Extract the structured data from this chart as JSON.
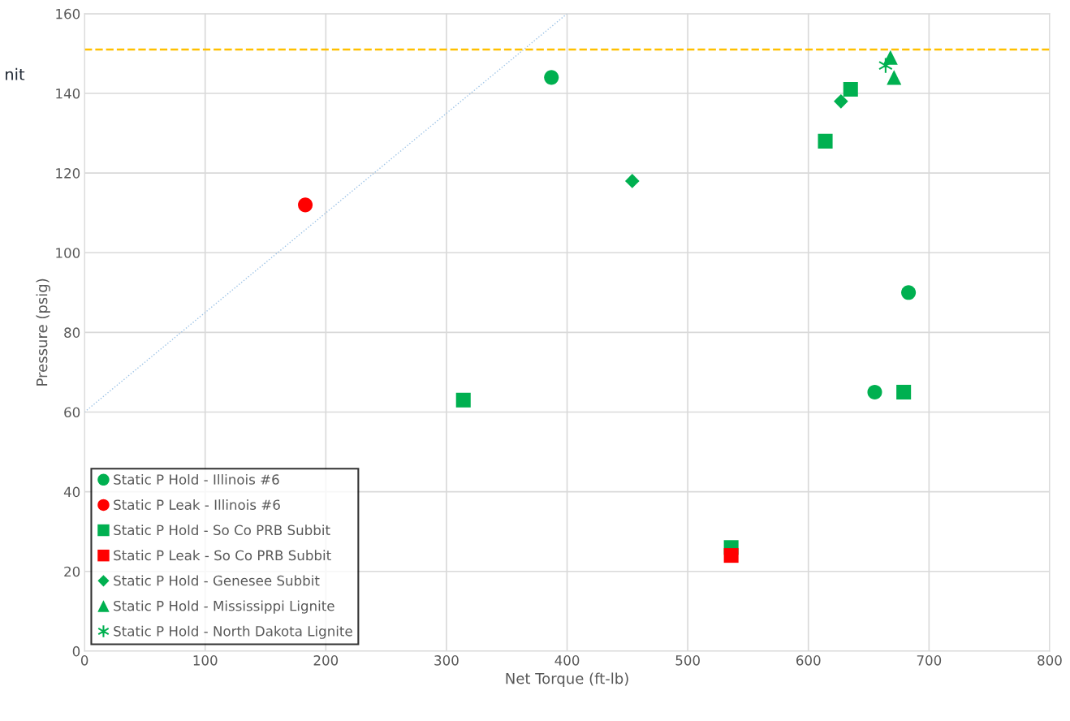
{
  "chart_data": {
    "type": "scatter",
    "xlabel": "Net Torque (ft-lb)",
    "ylabel": "Pressure (psig)",
    "xlim": [
      0,
      800
    ],
    "xticks": [
      0,
      100,
      200,
      300,
      400,
      500,
      600,
      700,
      800
    ],
    "ylim": [
      0,
      160
    ],
    "yticks": [
      0,
      20,
      40,
      60,
      80,
      100,
      120,
      140,
      160
    ],
    "annotations": [
      "nit"
    ],
    "grid": true,
    "legend": "bottom left",
    "series": [
      {
        "name": "Static P Hold - Illinois #6",
        "color": "#00b050",
        "marker": "circle",
        "x": [
          387,
          655,
          683
        ],
        "values": [
          144,
          65,
          90
        ]
      },
      {
        "name": "Static P Leak - Illinois #6",
        "color": "#ff0000",
        "marker": "circle",
        "x": [
          183
        ],
        "values": [
          112
        ]
      },
      {
        "name": "Static P Hold - So Co PRB Subbit",
        "color": "#00b050",
        "marker": "square",
        "x": [
          314,
          614,
          635,
          679,
          536
        ],
        "values": [
          63,
          128,
          141,
          65,
          26
        ]
      },
      {
        "name": "Static P Leak - So Co PRB Subbit",
        "color": "#ff0000",
        "marker": "square",
        "x": [
          536
        ],
        "values": [
          24
        ]
      },
      {
        "name": "Static P Hold - Genesee Subbit",
        "color": "#00b050",
        "marker": "diamond",
        "x": [
          454,
          627
        ],
        "values": [
          118,
          138
        ]
      },
      {
        "name": "Static P Hold - Mississippi Lignite",
        "color": "#00b050",
        "marker": "triangle",
        "x": [
          668,
          671
        ],
        "values": [
          149,
          144
        ]
      },
      {
        "name": "Static P Hold - North Dakota Lignite",
        "color": "#00b050",
        "marker": "cross",
        "x": [
          664
        ],
        "values": [
          147
        ]
      },
      {
        "type": "line",
        "color": "#9dc3e6",
        "line_style": "dotted",
        "marker": "none",
        "x": [
          0,
          400
        ],
        "values": [
          60,
          160
        ]
      }
    ],
    "ref_lines": [
      {
        "axis": "y",
        "value": 151,
        "color": "#ffc000",
        "line_style": "dashed"
      }
    ]
  }
}
